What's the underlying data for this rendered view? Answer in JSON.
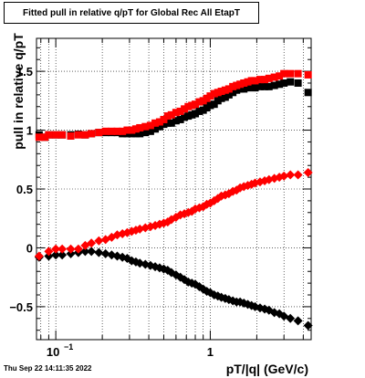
{
  "chart_data": {
    "type": "scatter",
    "title": "Fitted pull in relative q/pT for Global Rec All EtapT",
    "xlabel": "pT/|q| (GeV/c)",
    "ylabel": "pull in relative q/pT",
    "timestamp": "Thu Sep 22 14:11:35 2022",
    "x_scale": "log",
    "xlim": [
      0.075,
      4.5
    ],
    "ylim": [
      -0.78,
      1.78
    ],
    "grid": true,
    "x_ticks": [
      {
        "value": 0.1,
        "base": "10",
        "exp": "−1"
      },
      {
        "value": 1,
        "label": "1"
      }
    ],
    "y_ticks": [
      -0.5,
      0,
      0.5,
      1,
      1.5
    ],
    "y_tick_labels": [
      "−0.5",
      "0",
      "0.5",
      "1",
      "1.5"
    ],
    "series": [
      {
        "color": "#000000",
        "marker": "square",
        "points": [
          [
            0.078,
            0.96
          ],
          [
            0.085,
            0.94
          ],
          [
            0.09,
            0.96
          ],
          [
            0.1,
            0.96
          ],
          [
            0.11,
            0.96
          ],
          [
            0.125,
            0.96
          ],
          [
            0.14,
            0.965
          ],
          [
            0.155,
            0.96
          ],
          [
            0.17,
            0.97
          ],
          [
            0.19,
            0.98
          ],
          [
            0.21,
            0.98
          ],
          [
            0.23,
            0.98
          ],
          [
            0.25,
            0.98
          ],
          [
            0.27,
            0.97
          ],
          [
            0.29,
            0.97
          ],
          [
            0.31,
            0.97
          ],
          [
            0.33,
            0.97
          ],
          [
            0.35,
            0.97
          ],
          [
            0.38,
            0.98
          ],
          [
            0.41,
            0.99
          ],
          [
            0.44,
            1.01
          ],
          [
            0.47,
            1.03
          ],
          [
            0.5,
            1.05
          ],
          [
            0.53,
            1.06
          ],
          [
            0.56,
            1.06
          ],
          [
            0.6,
            1.08
          ],
          [
            0.64,
            1.09
          ],
          [
            0.68,
            1.11
          ],
          [
            0.72,
            1.12
          ],
          [
            0.76,
            1.13
          ],
          [
            0.8,
            1.14
          ],
          [
            0.85,
            1.16
          ],
          [
            0.9,
            1.17
          ],
          [
            0.95,
            1.19
          ],
          [
            1.0,
            1.21
          ],
          [
            1.06,
            1.22
          ],
          [
            1.12,
            1.25
          ],
          [
            1.18,
            1.27
          ],
          [
            1.25,
            1.28
          ],
          [
            1.32,
            1.3
          ],
          [
            1.4,
            1.32
          ],
          [
            1.48,
            1.34
          ],
          [
            1.56,
            1.35
          ],
          [
            1.65,
            1.35
          ],
          [
            1.75,
            1.36
          ],
          [
            1.85,
            1.37
          ],
          [
            1.95,
            1.36
          ],
          [
            2.1,
            1.37
          ],
          [
            2.25,
            1.37
          ],
          [
            2.4,
            1.37
          ],
          [
            2.6,
            1.38
          ],
          [
            2.8,
            1.39
          ],
          [
            3.0,
            1.4
          ],
          [
            3.3,
            1.41
          ],
          [
            3.7,
            1.4
          ],
          [
            4.3,
            1.32
          ]
        ]
      },
      {
        "color": "#ff0000",
        "marker": "square",
        "points": [
          [
            0.078,
            0.94
          ],
          [
            0.085,
            0.94
          ],
          [
            0.09,
            0.96
          ],
          [
            0.1,
            0.96
          ],
          [
            0.11,
            0.96
          ],
          [
            0.125,
            0.95
          ],
          [
            0.14,
            0.96
          ],
          [
            0.155,
            0.96
          ],
          [
            0.17,
            0.97
          ],
          [
            0.19,
            0.98
          ],
          [
            0.21,
            0.99
          ],
          [
            0.23,
            0.99
          ],
          [
            0.25,
            0.99
          ],
          [
            0.27,
            0.99
          ],
          [
            0.29,
            1.0
          ],
          [
            0.31,
            1.0
          ],
          [
            0.33,
            1.01
          ],
          [
            0.35,
            1.02
          ],
          [
            0.38,
            1.03
          ],
          [
            0.41,
            1.04
          ],
          [
            0.44,
            1.06
          ],
          [
            0.47,
            1.07
          ],
          [
            0.5,
            1.09
          ],
          [
            0.53,
            1.12
          ],
          [
            0.56,
            1.13
          ],
          [
            0.6,
            1.15
          ],
          [
            0.64,
            1.16
          ],
          [
            0.68,
            1.18
          ],
          [
            0.72,
            1.2
          ],
          [
            0.76,
            1.21
          ],
          [
            0.8,
            1.22
          ],
          [
            0.85,
            1.24
          ],
          [
            0.9,
            1.25
          ],
          [
            0.95,
            1.27
          ],
          [
            1.0,
            1.29
          ],
          [
            1.06,
            1.31
          ],
          [
            1.12,
            1.32
          ],
          [
            1.18,
            1.33
          ],
          [
            1.25,
            1.34
          ],
          [
            1.32,
            1.35
          ],
          [
            1.4,
            1.37
          ],
          [
            1.48,
            1.38
          ],
          [
            1.56,
            1.39
          ],
          [
            1.65,
            1.4
          ],
          [
            1.75,
            1.41
          ],
          [
            1.85,
            1.42
          ],
          [
            1.95,
            1.42
          ],
          [
            2.1,
            1.43
          ],
          [
            2.25,
            1.43
          ],
          [
            2.4,
            1.44
          ],
          [
            2.6,
            1.45
          ],
          [
            2.8,
            1.46
          ],
          [
            3.0,
            1.48
          ],
          [
            3.3,
            1.48
          ],
          [
            3.7,
            1.48
          ],
          [
            4.3,
            1.47
          ]
        ]
      },
      {
        "color": "#000000",
        "marker": "diamond",
        "points": [
          [
            0.078,
            -0.08
          ],
          [
            0.09,
            -0.07
          ],
          [
            0.1,
            -0.06
          ],
          [
            0.11,
            -0.06
          ],
          [
            0.125,
            -0.05
          ],
          [
            0.14,
            -0.04
          ],
          [
            0.155,
            -0.03
          ],
          [
            0.17,
            -0.03
          ],
          [
            0.19,
            -0.04
          ],
          [
            0.21,
            -0.05
          ],
          [
            0.23,
            -0.06
          ],
          [
            0.25,
            -0.07
          ],
          [
            0.27,
            -0.08
          ],
          [
            0.29,
            -0.09
          ],
          [
            0.31,
            -0.11
          ],
          [
            0.33,
            -0.12
          ],
          [
            0.35,
            -0.13
          ],
          [
            0.38,
            -0.14
          ],
          [
            0.41,
            -0.15
          ],
          [
            0.44,
            -0.16
          ],
          [
            0.47,
            -0.17
          ],
          [
            0.5,
            -0.18
          ],
          [
            0.53,
            -0.19
          ],
          [
            0.56,
            -0.21
          ],
          [
            0.6,
            -0.23
          ],
          [
            0.64,
            -0.25
          ],
          [
            0.68,
            -0.27
          ],
          [
            0.72,
            -0.29
          ],
          [
            0.76,
            -0.3
          ],
          [
            0.8,
            -0.31
          ],
          [
            0.85,
            -0.33
          ],
          [
            0.9,
            -0.35
          ],
          [
            0.95,
            -0.37
          ],
          [
            1.0,
            -0.38
          ],
          [
            1.06,
            -0.4
          ],
          [
            1.12,
            -0.41
          ],
          [
            1.18,
            -0.42
          ],
          [
            1.25,
            -0.43
          ],
          [
            1.32,
            -0.44
          ],
          [
            1.4,
            -0.45
          ],
          [
            1.48,
            -0.46
          ],
          [
            1.56,
            -0.46
          ],
          [
            1.65,
            -0.47
          ],
          [
            1.75,
            -0.48
          ],
          [
            1.85,
            -0.49
          ],
          [
            1.95,
            -0.5
          ],
          [
            2.1,
            -0.51
          ],
          [
            2.25,
            -0.52
          ],
          [
            2.4,
            -0.53
          ],
          [
            2.6,
            -0.55
          ],
          [
            2.8,
            -0.56
          ],
          [
            3.0,
            -0.58
          ],
          [
            3.3,
            -0.6
          ],
          [
            3.7,
            -0.62
          ],
          [
            4.3,
            -0.66
          ]
        ]
      },
      {
        "color": "#ff0000",
        "marker": "diamond",
        "points": [
          [
            0.078,
            -0.07
          ],
          [
            0.09,
            -0.03
          ],
          [
            0.1,
            -0.01
          ],
          [
            0.11,
            -0.01
          ],
          [
            0.125,
            -0.01
          ],
          [
            0.14,
            -0.01
          ],
          [
            0.155,
            0.02
          ],
          [
            0.17,
            0.04
          ],
          [
            0.19,
            0.06
          ],
          [
            0.21,
            0.07
          ],
          [
            0.23,
            0.09
          ],
          [
            0.25,
            0.11
          ],
          [
            0.27,
            0.12
          ],
          [
            0.29,
            0.13
          ],
          [
            0.31,
            0.14
          ],
          [
            0.33,
            0.15
          ],
          [
            0.35,
            0.16
          ],
          [
            0.38,
            0.17
          ],
          [
            0.41,
            0.18
          ],
          [
            0.44,
            0.19
          ],
          [
            0.47,
            0.2
          ],
          [
            0.5,
            0.21
          ],
          [
            0.53,
            0.22
          ],
          [
            0.56,
            0.24
          ],
          [
            0.6,
            0.26
          ],
          [
            0.64,
            0.28
          ],
          [
            0.68,
            0.29
          ],
          [
            0.72,
            0.3
          ],
          [
            0.76,
            0.31
          ],
          [
            0.8,
            0.33
          ],
          [
            0.85,
            0.34
          ],
          [
            0.9,
            0.35
          ],
          [
            0.95,
            0.37
          ],
          [
            1.0,
            0.38
          ],
          [
            1.06,
            0.4
          ],
          [
            1.12,
            0.42
          ],
          [
            1.18,
            0.44
          ],
          [
            1.25,
            0.45
          ],
          [
            1.32,
            0.46
          ],
          [
            1.4,
            0.48
          ],
          [
            1.48,
            0.49
          ],
          [
            1.56,
            0.51
          ],
          [
            1.65,
            0.52
          ],
          [
            1.75,
            0.53
          ],
          [
            1.85,
            0.54
          ],
          [
            1.95,
            0.55
          ],
          [
            2.1,
            0.56
          ],
          [
            2.25,
            0.57
          ],
          [
            2.4,
            0.58
          ],
          [
            2.6,
            0.59
          ],
          [
            2.8,
            0.6
          ],
          [
            3.0,
            0.61
          ],
          [
            3.3,
            0.62
          ],
          [
            3.7,
            0.62
          ],
          [
            4.3,
            0.64
          ]
        ]
      }
    ]
  }
}
